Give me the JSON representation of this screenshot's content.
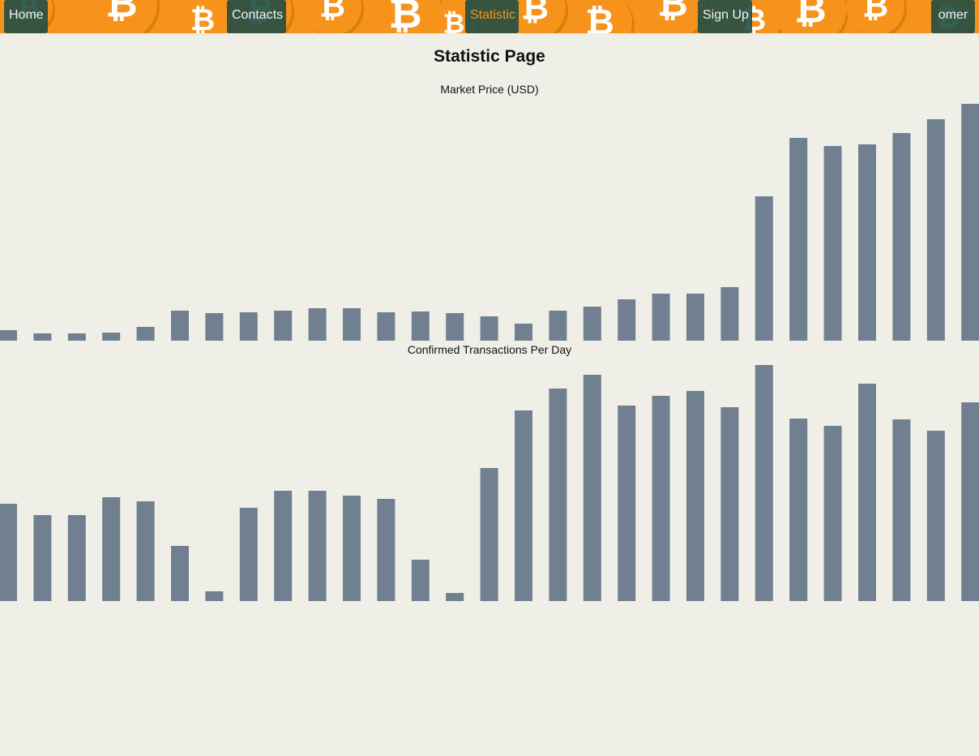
{
  "nav": {
    "home": "Home",
    "contacts": "Contacts",
    "statistic": "Statistic",
    "signup": "Sign Up",
    "user": "omer"
  },
  "page": {
    "title": "Statistic Page"
  },
  "colors": {
    "bar": "#708090",
    "nav_bg": "#f7931a",
    "nav_button": "#204e44",
    "active_link": "#f7931a",
    "page_bg": "#f0efe7"
  },
  "chart_data": [
    {
      "type": "bar",
      "title": "Market Price (USD)",
      "values": [
        13,
        9,
        9,
        10,
        17,
        37,
        34,
        35,
        37,
        40,
        40,
        35,
        36,
        34,
        30,
        21,
        37,
        42,
        51,
        58,
        58,
        66,
        178,
        250,
        240,
        242,
        256,
        273,
        292
      ],
      "ylim": [
        0,
        300
      ],
      "grid": false
    },
    {
      "type": "bar",
      "title": "Confirmed Transactions Per Day",
      "values": [
        120,
        106,
        106,
        128,
        123,
        68,
        12,
        115,
        136,
        136,
        130,
        126,
        51,
        10,
        164,
        235,
        262,
        279,
        241,
        253,
        259,
        239,
        291,
        225,
        216,
        268,
        224,
        210,
        245
      ],
      "ylim": [
        0,
        300
      ],
      "grid": false
    }
  ]
}
